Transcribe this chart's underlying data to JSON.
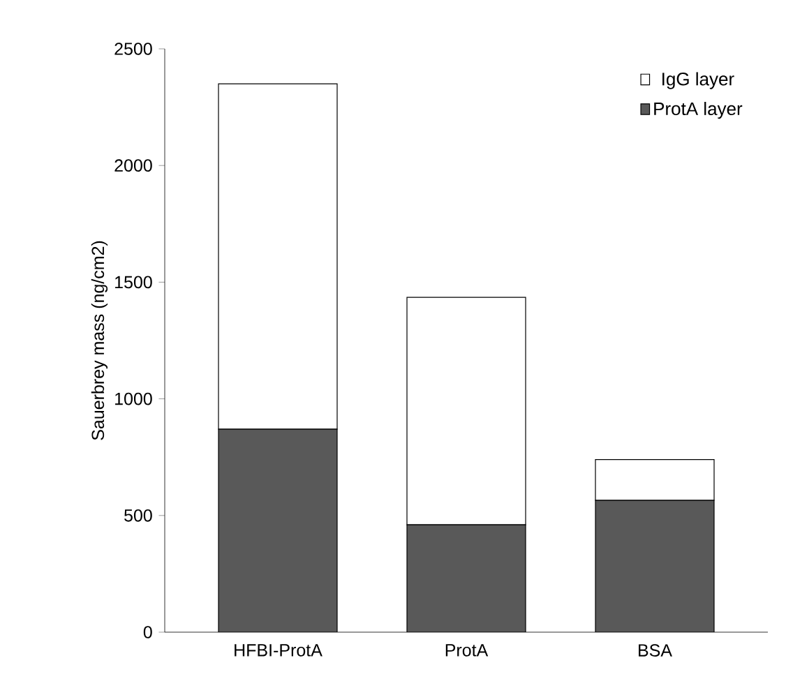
{
  "chart_data": {
    "type": "bar",
    "stacked": true,
    "ylabel": "Sauerbrey mass (ng/cm2)",
    "categories": [
      "HFBI-ProtA",
      "ProtA",
      "BSA"
    ],
    "series": [
      {
        "name": "ProtA layer",
        "color": "#595959",
        "values": [
          870,
          460,
          565
        ]
      },
      {
        "name": "IgG layer",
        "color": "#ffffff",
        "values": [
          1480,
          975,
          175
        ]
      }
    ],
    "ylim": [
      0,
      2500
    ],
    "yticks": [
      0,
      500,
      1000,
      1500,
      2000,
      2500
    ],
    "legend": "top right",
    "grid": false
  }
}
